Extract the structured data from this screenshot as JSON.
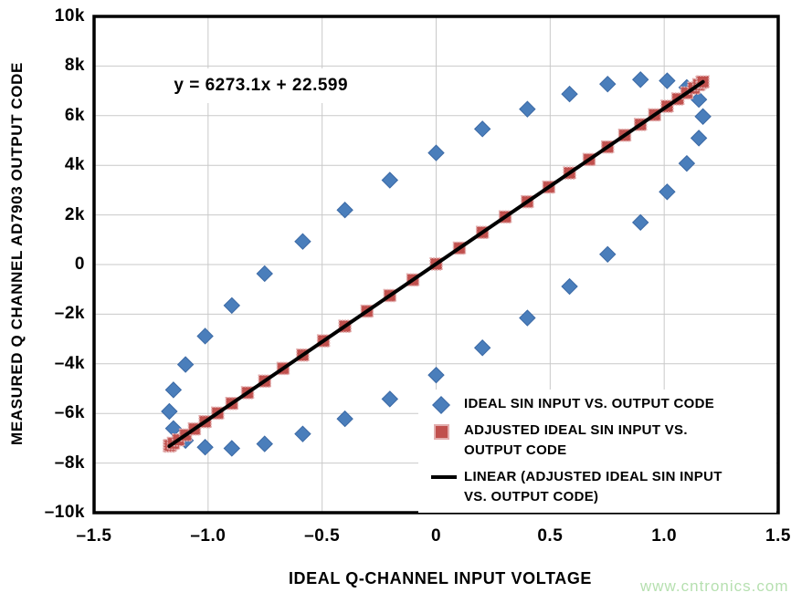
{
  "figure": {
    "background": "#ffffff",
    "watermark": {
      "text": "www.cntronics.com",
      "color": "#b6e0b0"
    }
  },
  "chart_data": {
    "type": "scatter",
    "title": "",
    "xlabel": "IDEAL Q-CHANNEL INPUT VOLTAGE",
    "ylabel": "MEASURED Q CHANNEL AD7903 OUTPUT CODE",
    "xlim": [
      -1.5,
      1.5
    ],
    "ylim": [
      -10000,
      10000
    ],
    "grid": true,
    "gridline_color": "#c9c9c9",
    "legend_position": "inside-bottom-right",
    "annotation": {
      "text": "y = 6273.1x + 22.599",
      "x": -1.15,
      "y": 7200
    },
    "x_ticks": [
      {
        "value": -1.5,
        "label": "–1.5"
      },
      {
        "value": -1.0,
        "label": "–1.0"
      },
      {
        "value": -0.5,
        "label": "–0.5"
      },
      {
        "value": 0,
        "label": "0"
      },
      {
        "value": 0.5,
        "label": "0.5"
      },
      {
        "value": 1.0,
        "label": "1.0"
      },
      {
        "value": 1.5,
        "label": "1.5"
      }
    ],
    "y_ticks": [
      {
        "value": 10000,
        "label": "10k"
      },
      {
        "value": 8000,
        "label": "8k"
      },
      {
        "value": 6000,
        "label": "6k"
      },
      {
        "value": 4000,
        "label": "4k"
      },
      {
        "value": 2000,
        "label": "2k"
      },
      {
        "value": 0,
        "label": "0"
      },
      {
        "value": -2000,
        "label": "–2k"
      },
      {
        "value": -4000,
        "label": "–4k"
      },
      {
        "value": -6000,
        "label": "–6k"
      },
      {
        "value": -8000,
        "label": "–8k"
      },
      {
        "value": -10000,
        "label": "–10k"
      }
    ],
    "series": [
      {
        "name": "IDEAL SIN INPUT VS. OUTPUT CODE",
        "marker": "diamond",
        "color": "#4a7ebb",
        "stroke": "#3b69a5",
        "points": [
          [
            0.0,
            -4454
          ],
          [
            0.203,
            -3355
          ],
          [
            0.4,
            -2152
          ],
          [
            0.585,
            -884
          ],
          [
            0.752,
            412
          ],
          [
            0.896,
            1697
          ],
          [
            1.013,
            2930
          ],
          [
            1.099,
            4075
          ],
          [
            1.152,
            5097
          ],
          [
            1.17,
            5965
          ],
          [
            1.152,
            6652
          ],
          [
            1.099,
            7138
          ],
          [
            1.013,
            7407
          ],
          [
            0.896,
            7453
          ],
          [
            0.752,
            7273
          ],
          [
            0.585,
            6872
          ],
          [
            0.4,
            6263
          ],
          [
            0.203,
            5465
          ],
          [
            0.0,
            4500
          ],
          [
            -0.203,
            3401
          ],
          [
            -0.4,
            2198
          ],
          [
            -0.585,
            930
          ],
          [
            -0.752,
            -366
          ],
          [
            -0.896,
            -1651
          ],
          [
            -1.013,
            -2884
          ],
          [
            -1.099,
            -4029
          ],
          [
            -1.152,
            -5051
          ],
          [
            -1.17,
            -5919
          ],
          [
            -1.152,
            -6606
          ],
          [
            -1.099,
            -7092
          ],
          [
            -1.013,
            -7361
          ],
          [
            -0.896,
            -7407
          ],
          [
            -0.752,
            -7227
          ],
          [
            -0.585,
            -6826
          ],
          [
            -0.4,
            -6217
          ],
          [
            -0.203,
            -5419
          ]
        ]
      },
      {
        "name": "ADJUSTED IDEAL SIN INPUT VS. OUTPUT CODE",
        "marker": "square",
        "color": "#c0504d",
        "stroke": "#e2aeae",
        "points": [
          [
            -1.17,
            -7317
          ],
          [
            -1.166,
            -7292
          ],
          [
            -1.152,
            -7204
          ],
          [
            -1.13,
            -7066
          ],
          [
            -1.099,
            -6872
          ],
          [
            -1.06,
            -6627
          ],
          [
            -1.013,
            -6332
          ],
          [
            -0.958,
            -5987
          ],
          [
            -0.896,
            -5598
          ],
          [
            -0.827,
            -5165
          ],
          [
            -0.752,
            -4695
          ],
          [
            -0.671,
            -4187
          ],
          [
            -0.585,
            -3647
          ],
          [
            -0.494,
            -3076
          ],
          [
            -0.4,
            -2487
          ],
          [
            -0.303,
            -1878
          ],
          [
            -0.203,
            -1251
          ],
          [
            -0.102,
            -617
          ],
          [
            0.0,
            23
          ],
          [
            0.102,
            663
          ],
          [
            0.203,
            1296
          ],
          [
            0.303,
            1923
          ],
          [
            0.4,
            2532
          ],
          [
            0.494,
            3122
          ],
          [
            0.585,
            3692
          ],
          [
            0.671,
            4232
          ],
          [
            0.752,
            4740
          ],
          [
            0.827,
            5210
          ],
          [
            0.896,
            5643
          ],
          [
            0.958,
            6032
          ],
          [
            1.013,
            6377
          ],
          [
            1.06,
            6672
          ],
          [
            1.099,
            6917
          ],
          [
            1.13,
            7111
          ],
          [
            1.152,
            7249
          ],
          [
            1.166,
            7337
          ],
          [
            1.17,
            7362
          ]
        ]
      },
      {
        "name": "LINEAR (ADJUSTED IDEAL SIN INPUT VS. OUTPUT CODE)",
        "marker": "line",
        "color": "#000000",
        "line": {
          "slope": 6273.1,
          "intercept": 22.599,
          "x_start": -1.17,
          "x_end": 1.17
        }
      }
    ]
  }
}
